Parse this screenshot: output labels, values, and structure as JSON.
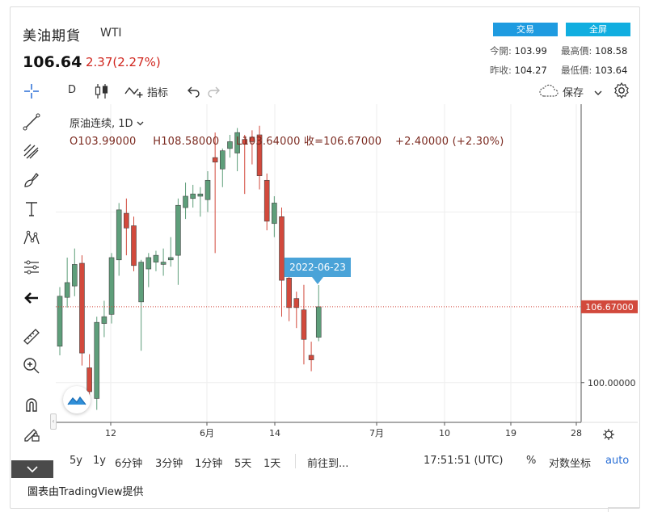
{
  "header": {
    "title": "美油期貨",
    "symbol": "WTI",
    "price": "106.64",
    "change": "2.37(2.27%)",
    "buttons": {
      "trade": "交易",
      "fullscreen": "全屏"
    },
    "stats": {
      "open_label": "今開:",
      "open_value": "103.99",
      "high_label": "最高價:",
      "high_value": "108.58",
      "prev_label": "昨收:",
      "prev_value": "104.27",
      "low_label": "最低價:",
      "low_value": "103.64"
    }
  },
  "toolbar": {
    "interval": "D",
    "indicators_label": "指标",
    "save_label": "保存"
  },
  "legend": {
    "series_title": "原油连续, 1D",
    "open": "O103.99000",
    "high": "H108.58000",
    "low": "L103.64000",
    "close": "收=106.67000",
    "change": "+2.40000 (+2.30%)"
  },
  "chart_data": {
    "type": "candlestick",
    "x_tick_labels": [
      "12",
      "6月",
      "14",
      "7月",
      "10",
      "19",
      "28"
    ],
    "y_tick_labels": [
      "100.00000"
    ],
    "last_price_label": "106.67000",
    "crosshair_date_label": "2022-06-23",
    "ylim": [
      96.5,
      124.5
    ],
    "grid": true,
    "up_color": "#5e9e7a",
    "down_color": "#d2493c",
    "candles": [
      {
        "o": 103.2,
        "h": 108.4,
        "l": 102.4,
        "c": 107.6
      },
      {
        "o": 107.5,
        "h": 111.0,
        "l": 106.6,
        "c": 108.8
      },
      {
        "o": 108.5,
        "h": 111.8,
        "l": 107.6,
        "c": 110.4
      },
      {
        "o": 110.5,
        "h": 111.2,
        "l": 101.5,
        "c": 102.6
      },
      {
        "o": 101.3,
        "h": 102.5,
        "l": 98.6,
        "c": 99.2
      },
      {
        "o": 98.6,
        "h": 105.8,
        "l": 97.6,
        "c": 105.3
      },
      {
        "o": 105.2,
        "h": 107.2,
        "l": 104.0,
        "c": 105.8
      },
      {
        "o": 106.0,
        "h": 111.4,
        "l": 105.2,
        "c": 111.0
      },
      {
        "o": 110.8,
        "h": 115.8,
        "l": 109.4,
        "c": 115.2
      },
      {
        "o": 114.9,
        "h": 116.2,
        "l": 111.2,
        "c": 113.6
      },
      {
        "o": 113.8,
        "h": 114.6,
        "l": 109.8,
        "c": 110.3
      },
      {
        "o": 107.1,
        "h": 110.8,
        "l": 102.8,
        "c": 110.6
      },
      {
        "o": 110.0,
        "h": 111.4,
        "l": 108.4,
        "c": 111.0
      },
      {
        "o": 110.6,
        "h": 111.6,
        "l": 109.8,
        "c": 111.2
      },
      {
        "o": 110.4,
        "h": 111.8,
        "l": 109.4,
        "c": 110.6
      },
      {
        "o": 110.8,
        "h": 112.8,
        "l": 110.2,
        "c": 111.0
      },
      {
        "o": 111.2,
        "h": 116.2,
        "l": 108.6,
        "c": 115.6
      },
      {
        "o": 115.4,
        "h": 117.6,
        "l": 114.4,
        "c": 116.4
      },
      {
        "o": 116.2,
        "h": 117.4,
        "l": 115.4,
        "c": 116.6
      },
      {
        "o": 116.4,
        "h": 117.2,
        "l": 114.6,
        "c": 116.6
      },
      {
        "o": 116.1,
        "h": 118.6,
        "l": 115.0,
        "c": 117.8
      },
      {
        "o": 119.8,
        "h": 122.0,
        "l": 111.4,
        "c": 119.4
      },
      {
        "o": 118.8,
        "h": 120.6,
        "l": 117.2,
        "c": 120.4
      },
      {
        "o": 120.6,
        "h": 121.8,
        "l": 119.8,
        "c": 121.2
      },
      {
        "o": 120.2,
        "h": 122.4,
        "l": 118.6,
        "c": 122.0
      },
      {
        "o": 121.4,
        "h": 121.8,
        "l": 116.6,
        "c": 121.0
      },
      {
        "o": 121.6,
        "h": 122.2,
        "l": 119.2,
        "c": 121.2
      },
      {
        "o": 121.8,
        "h": 122.6,
        "l": 117.0,
        "c": 118.2
      },
      {
        "o": 117.8,
        "h": 118.4,
        "l": 113.4,
        "c": 114.2
      },
      {
        "o": 114.0,
        "h": 116.4,
        "l": 112.8,
        "c": 115.8
      },
      {
        "o": 114.6,
        "h": 115.4,
        "l": 105.8,
        "c": 109.0
      },
      {
        "o": 109.2,
        "h": 109.4,
        "l": 105.4,
        "c": 106.6
      },
      {
        "o": 107.4,
        "h": 108.0,
        "l": 104.8,
        "c": 106.6
      },
      {
        "o": 106.4,
        "h": 108.6,
        "l": 101.6,
        "c": 103.8
      },
      {
        "o": 102.4,
        "h": 103.6,
        "l": 101.0,
        "c": 102.0
      },
      {
        "o": 103.99,
        "h": 108.58,
        "l": 103.64,
        "c": 106.67
      }
    ]
  },
  "range_bar": {
    "ranges": [
      "5y",
      "1y",
      "6分钟",
      "3分钟",
      "1分钟",
      "5天",
      "1天"
    ],
    "goto_label": "前往到...",
    "time": "17:51:51 (UTC)",
    "percent_label": "%",
    "log_label": "对数坐标",
    "auto_label": "auto"
  },
  "footer": {
    "text": "圖表由TradingView提供"
  }
}
